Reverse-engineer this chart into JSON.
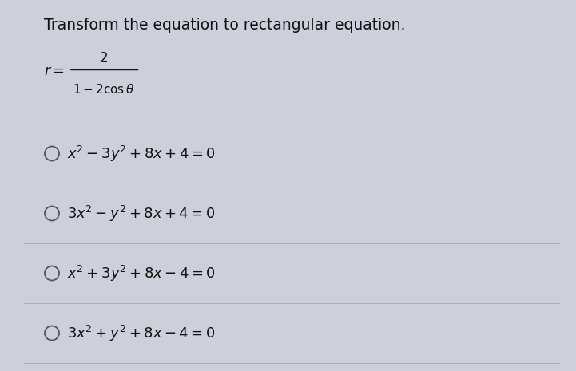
{
  "title": "Transform the equation to rectangular equation.",
  "math_texts": [
    "$x^2 - 3y^2 + 8x + 4 = 0$",
    "$3x^2 - y^2 + 8x + 4 = 0$",
    "$x^2 + 3y^2 + 8x - 4 = 0$",
    "$3x^2 + y^2 + 8x - 4 = 0$"
  ],
  "bg_color": "#cdd0db",
  "title_color": "#111111",
  "option_color": "#111111",
  "circle_color": "#555555",
  "divider_color": "#b0b0b8",
  "title_fontsize": 13.5,
  "option_fontsize": 13,
  "equation_fontsize": 12
}
